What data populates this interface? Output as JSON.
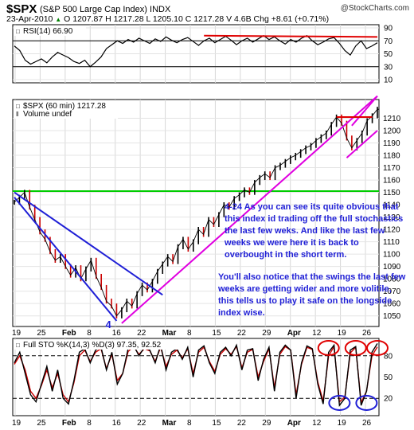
{
  "header": {
    "symbol": "$SPX",
    "name": "(S&P 500 Large Cap Index)",
    "exchange": "INDX",
    "watermark": "@StockCharts.com",
    "date": "23-Apr-2010",
    "quote_line": "O 1207.87  H 1217.28  L 1205.10  C 1217.28  V 4.6B  Chg +8.61 (+0.71%)",
    "quote_glyph": "▲"
  },
  "colors": {
    "price": "#000000",
    "price_highlight": "#cc0000",
    "rsi_line": "#000000",
    "pink_trendline": "#e000e0",
    "blue_channel": "#1f1fd6",
    "green_level": "#00cc00",
    "red_marks": "#e00000",
    "sto_k": "#000000",
    "sto_d": "#cc0000",
    "annotation_text": "#1f1fd6"
  },
  "chart_data": [
    {
      "type": "line",
      "panel": "rsi",
      "title": "RSI(14) 66.90",
      "y_ticks": [
        10,
        30,
        50,
        70,
        90
      ],
      "ylim": [
        10,
        90
      ],
      "reference_lines": [
        30,
        70
      ],
      "series": [
        {
          "values": [
            62,
            55,
            40,
            34,
            38,
            42,
            36,
            45,
            52,
            48,
            44,
            38,
            35,
            40,
            30,
            37,
            45,
            58,
            64,
            70,
            66,
            72,
            68,
            74,
            70,
            66,
            73,
            69,
            76,
            71,
            67,
            72,
            75,
            69,
            63,
            70,
            74,
            67,
            72,
            77,
            71,
            64,
            70,
            74,
            68,
            73,
            78,
            72,
            76,
            70,
            65,
            72,
            68,
            74,
            78,
            70,
            64,
            68,
            73,
            75,
            66,
            55,
            48,
            62,
            70,
            58,
            62,
            67
          ]
        }
      ],
      "annotation": {
        "type": "red_horizontal_line",
        "from_index": 35,
        "to_index": 67,
        "value_start": 78,
        "value_end": 76
      }
    },
    {
      "type": "line",
      "panel": "price",
      "title": "$SPX (60 min) 1217.28",
      "subtitle": "Volume undef",
      "y_ticks": [
        1050,
        1060,
        1070,
        1080,
        1090,
        1100,
        1110,
        1120,
        1130,
        1140,
        1150,
        1160,
        1170,
        1180,
        1190,
        1200,
        1210
      ],
      "ylim": [
        1044,
        1220
      ],
      "x_ticks": [
        "19",
        "25",
        "Feb",
        "8",
        "16",
        "22",
        "Mar",
        "8",
        "15",
        "22",
        "29",
        "Apr",
        "12",
        "19",
        "26"
      ],
      "series": [
        {
          "values": [
            1142,
            1146,
            1150,
            1138,
            1128,
            1118,
            1112,
            1102,
            1095,
            1098,
            1090,
            1083,
            1089,
            1080,
            1088,
            1095,
            1082,
            1073,
            1062,
            1058,
            1050,
            1055,
            1062,
            1058,
            1068,
            1075,
            1071,
            1078,
            1086,
            1092,
            1098,
            1094,
            1106,
            1112,
            1104,
            1110,
            1120,
            1116,
            1128,
            1124,
            1132,
            1140,
            1138,
            1145,
            1148,
            1152,
            1150,
            1158,
            1162,
            1165,
            1162,
            1170,
            1172,
            1175,
            1178,
            1180,
            1183,
            1186,
            1188,
            1192,
            1195,
            1198,
            1205,
            1211,
            1206,
            1194,
            1186,
            1192,
            1198,
            1208,
            1212,
            1217.28
          ]
        }
      ],
      "levels": [
        {
          "name": "support_resistance",
          "value": 1151
        }
      ],
      "trendlines": [
        {
          "name": "pink_uptrend",
          "from": {
            "index": 21,
            "value": 1044
          },
          "to": {
            "index": 71,
            "value": 1228
          }
        },
        {
          "name": "pink_channel_top",
          "from": {
            "index": 66,
            "value": 1204
          },
          "to": {
            "index": 71,
            "value": 1228
          }
        },
        {
          "name": "pink_channel_bottom",
          "from": {
            "index": 65,
            "value": 1178
          },
          "to": {
            "index": 71,
            "value": 1200
          }
        },
        {
          "name": "blue_channel_upper",
          "from": {
            "index": 0,
            "value": 1150
          },
          "to": {
            "index": 29,
            "value": 1067
          }
        },
        {
          "name": "blue_channel_lower",
          "from": {
            "index": 0,
            "value": 1146
          },
          "to": {
            "index": 20,
            "value": 1046
          }
        },
        {
          "name": "red_top",
          "from": {
            "index": 63,
            "value": 1211
          },
          "to": {
            "index": 70,
            "value": 1211
          }
        }
      ],
      "wave_label": "4",
      "annotations": [
        "4-24 As you can see its quite obvious that this index id trading off the full stochastics the last few weks. And like the last few weeks we were here it is back to overbought in the short term.",
        "You'll also notice that the swings the last few weeks are getting wider and more volitile, this tells us to play it safe on the longside index wise."
      ]
    },
    {
      "type": "line",
      "panel": "full_stochastics",
      "title": "Full STO %K(14,3) %D(3) 97.35, 92.52",
      "y_ticks": [
        20,
        50,
        80
      ],
      "ylim": [
        0,
        100
      ],
      "reference_lines": [
        20,
        80
      ],
      "x_ticks": [
        "19",
        "25",
        "Feb",
        "8",
        "16",
        "22",
        "Mar",
        "8",
        "15",
        "22",
        "29",
        "Apr",
        "12",
        "19",
        "26"
      ],
      "series": [
        {
          "name": "%K",
          "values": [
            70,
            85,
            55,
            25,
            15,
            40,
            65,
            30,
            60,
            20,
            12,
            45,
            85,
            90,
            70,
            88,
            92,
            60,
            85,
            40,
            55,
            90,
            95,
            80,
            92,
            88,
            70,
            95,
            60,
            85,
            90,
            75,
            92,
            50,
            88,
            94,
            70,
            55,
            85,
            92,
            80,
            95,
            60,
            88,
            90,
            45,
            75,
            92,
            30,
            85,
            95,
            88,
            20,
            70,
            94,
            90,
            40,
            12,
            85,
            95,
            10,
            20,
            88,
            93,
            10,
            30,
            85,
            97.35
          ]
        },
        {
          "name": "%D",
          "values": [
            68,
            80,
            60,
            30,
            20,
            38,
            60,
            35,
            55,
            25,
            15,
            42,
            80,
            88,
            72,
            85,
            90,
            62,
            82,
            45,
            55,
            86,
            93,
            82,
            90,
            87,
            72,
            92,
            65,
            82,
            88,
            77,
            90,
            55,
            85,
            92,
            72,
            58,
            82,
            90,
            82,
            93,
            63,
            85,
            89,
            50,
            72,
            90,
            35,
            82,
            93,
            88,
            25,
            68,
            92,
            89,
            43,
            16,
            80,
            93,
            15,
            22,
            84,
            92,
            14,
            30,
            80,
            92.52
          ]
        }
      ],
      "highlight_circles": [
        {
          "color": "red",
          "level": "overbought",
          "near_index": 58
        },
        {
          "color": "red",
          "level": "overbought",
          "near_index": 63
        },
        {
          "color": "red",
          "level": "overbought",
          "near_index": 67
        },
        {
          "color": "blue",
          "level": "oversold",
          "near_index": 60
        },
        {
          "color": "blue",
          "level": "oversold",
          "near_index": 65
        }
      ]
    }
  ]
}
